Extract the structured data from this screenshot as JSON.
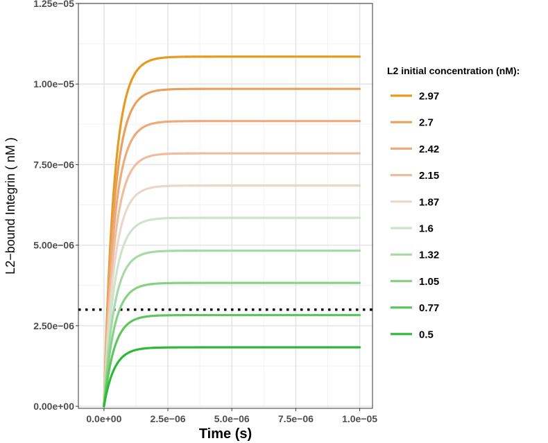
{
  "chart_data": {
    "type": "line",
    "title": "",
    "xlabel": "Time (s)",
    "ylabel": "L2−bound Integrin ( nM )",
    "xlim": [
      -1e-06,
      1.05e-05
    ],
    "ylim": [
      -6.25e-08,
      1.25e-05
    ],
    "x_ticks": [
      0,
      2.5e-06,
      5e-06,
      7.5e-06,
      1e-05
    ],
    "x_tick_labels": [
      "0.0e+00",
      "2.5e−06",
      "5.0e−06",
      "7.5e−06",
      "1.0e−05"
    ],
    "y_ticks": [
      0,
      2.5e-06,
      5e-06,
      7.5e-06,
      1e-05,
      1.25e-05
    ],
    "y_tick_labels": [
      "0.00e+00",
      "2.50e−06",
      "5.00e−06",
      "7.50e−06",
      "1.00e−05",
      "1.25e−05"
    ],
    "grid": true,
    "legend": {
      "title": "L2 initial concentration (nM):",
      "position": "right"
    },
    "curve_shape": {
      "x_start": 0,
      "x_end": 1e-05,
      "time_constant": 4e-07
    },
    "series": [
      {
        "name": "2.97",
        "plateau": 1.085e-05,
        "color": "#e69a1f"
      },
      {
        "name": "2.7",
        "plateau": 9.85e-06,
        "color": "#e9a05c"
      },
      {
        "name": "2.42",
        "plateau": 8.85e-06,
        "color": "#edab7c"
      },
      {
        "name": "2.15",
        "plateau": 7.85e-06,
        "color": "#efbd9e"
      },
      {
        "name": "1.87",
        "plateau": 6.85e-06,
        "color": "#ebd6c8"
      },
      {
        "name": "1.6",
        "plateau": 5.85e-06,
        "color": "#cde3cc"
      },
      {
        "name": "1.32",
        "plateau": 4.83e-06,
        "color": "#a6d9a5"
      },
      {
        "name": "1.05",
        "plateau": 3.83e-06,
        "color": "#86d186"
      },
      {
        "name": "0.77",
        "plateau": 2.83e-06,
        "color": "#5fc65f"
      },
      {
        "name": "0.5",
        "plateau": 1.83e-06,
        "color": "#2eb838"
      }
    ],
    "reference_line": {
      "y": 3e-06,
      "style": "dotted",
      "color": "#000000"
    }
  }
}
